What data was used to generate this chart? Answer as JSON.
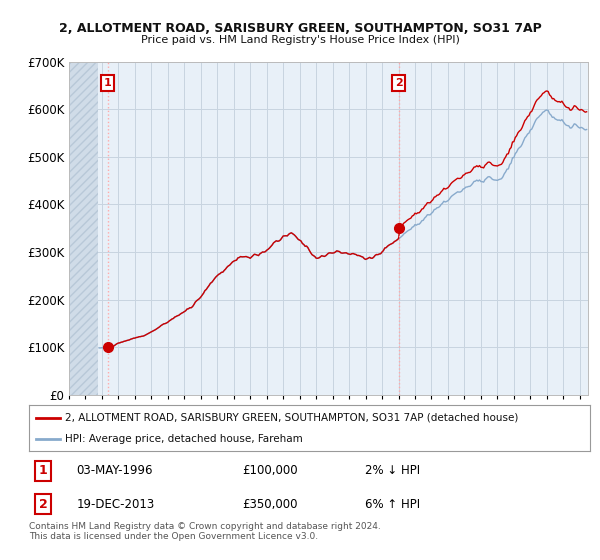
{
  "title1": "2, ALLOTMENT ROAD, SARISBURY GREEN, SOUTHAMPTON, SO31 7AP",
  "title2": "Price paid vs. HM Land Registry's House Price Index (HPI)",
  "legend_line1": "2, ALLOTMENT ROAD, SARISBURY GREEN, SOUTHAMPTON, SO31 7AP (detached house)",
  "legend_line2": "HPI: Average price, detached house, Fareham",
  "property_color": "#cc0000",
  "hpi_color": "#88aacc",
  "sale1_price": 100000,
  "sale1_x": 1996.35,
  "sale2_price": 350000,
  "sale2_x": 2014.0,
  "footer": "Contains HM Land Registry data © Crown copyright and database right 2024.\nThis data is licensed under the Open Government Licence v3.0.",
  "ylim": [
    0,
    700000
  ],
  "xlim_start": 1994.0,
  "xlim_end": 2025.5,
  "hatch_end": 1995.75,
  "plot_bg": "#e8f0f8",
  "grid_color": "#c8d4e0",
  "fig_bg": "#ffffff"
}
